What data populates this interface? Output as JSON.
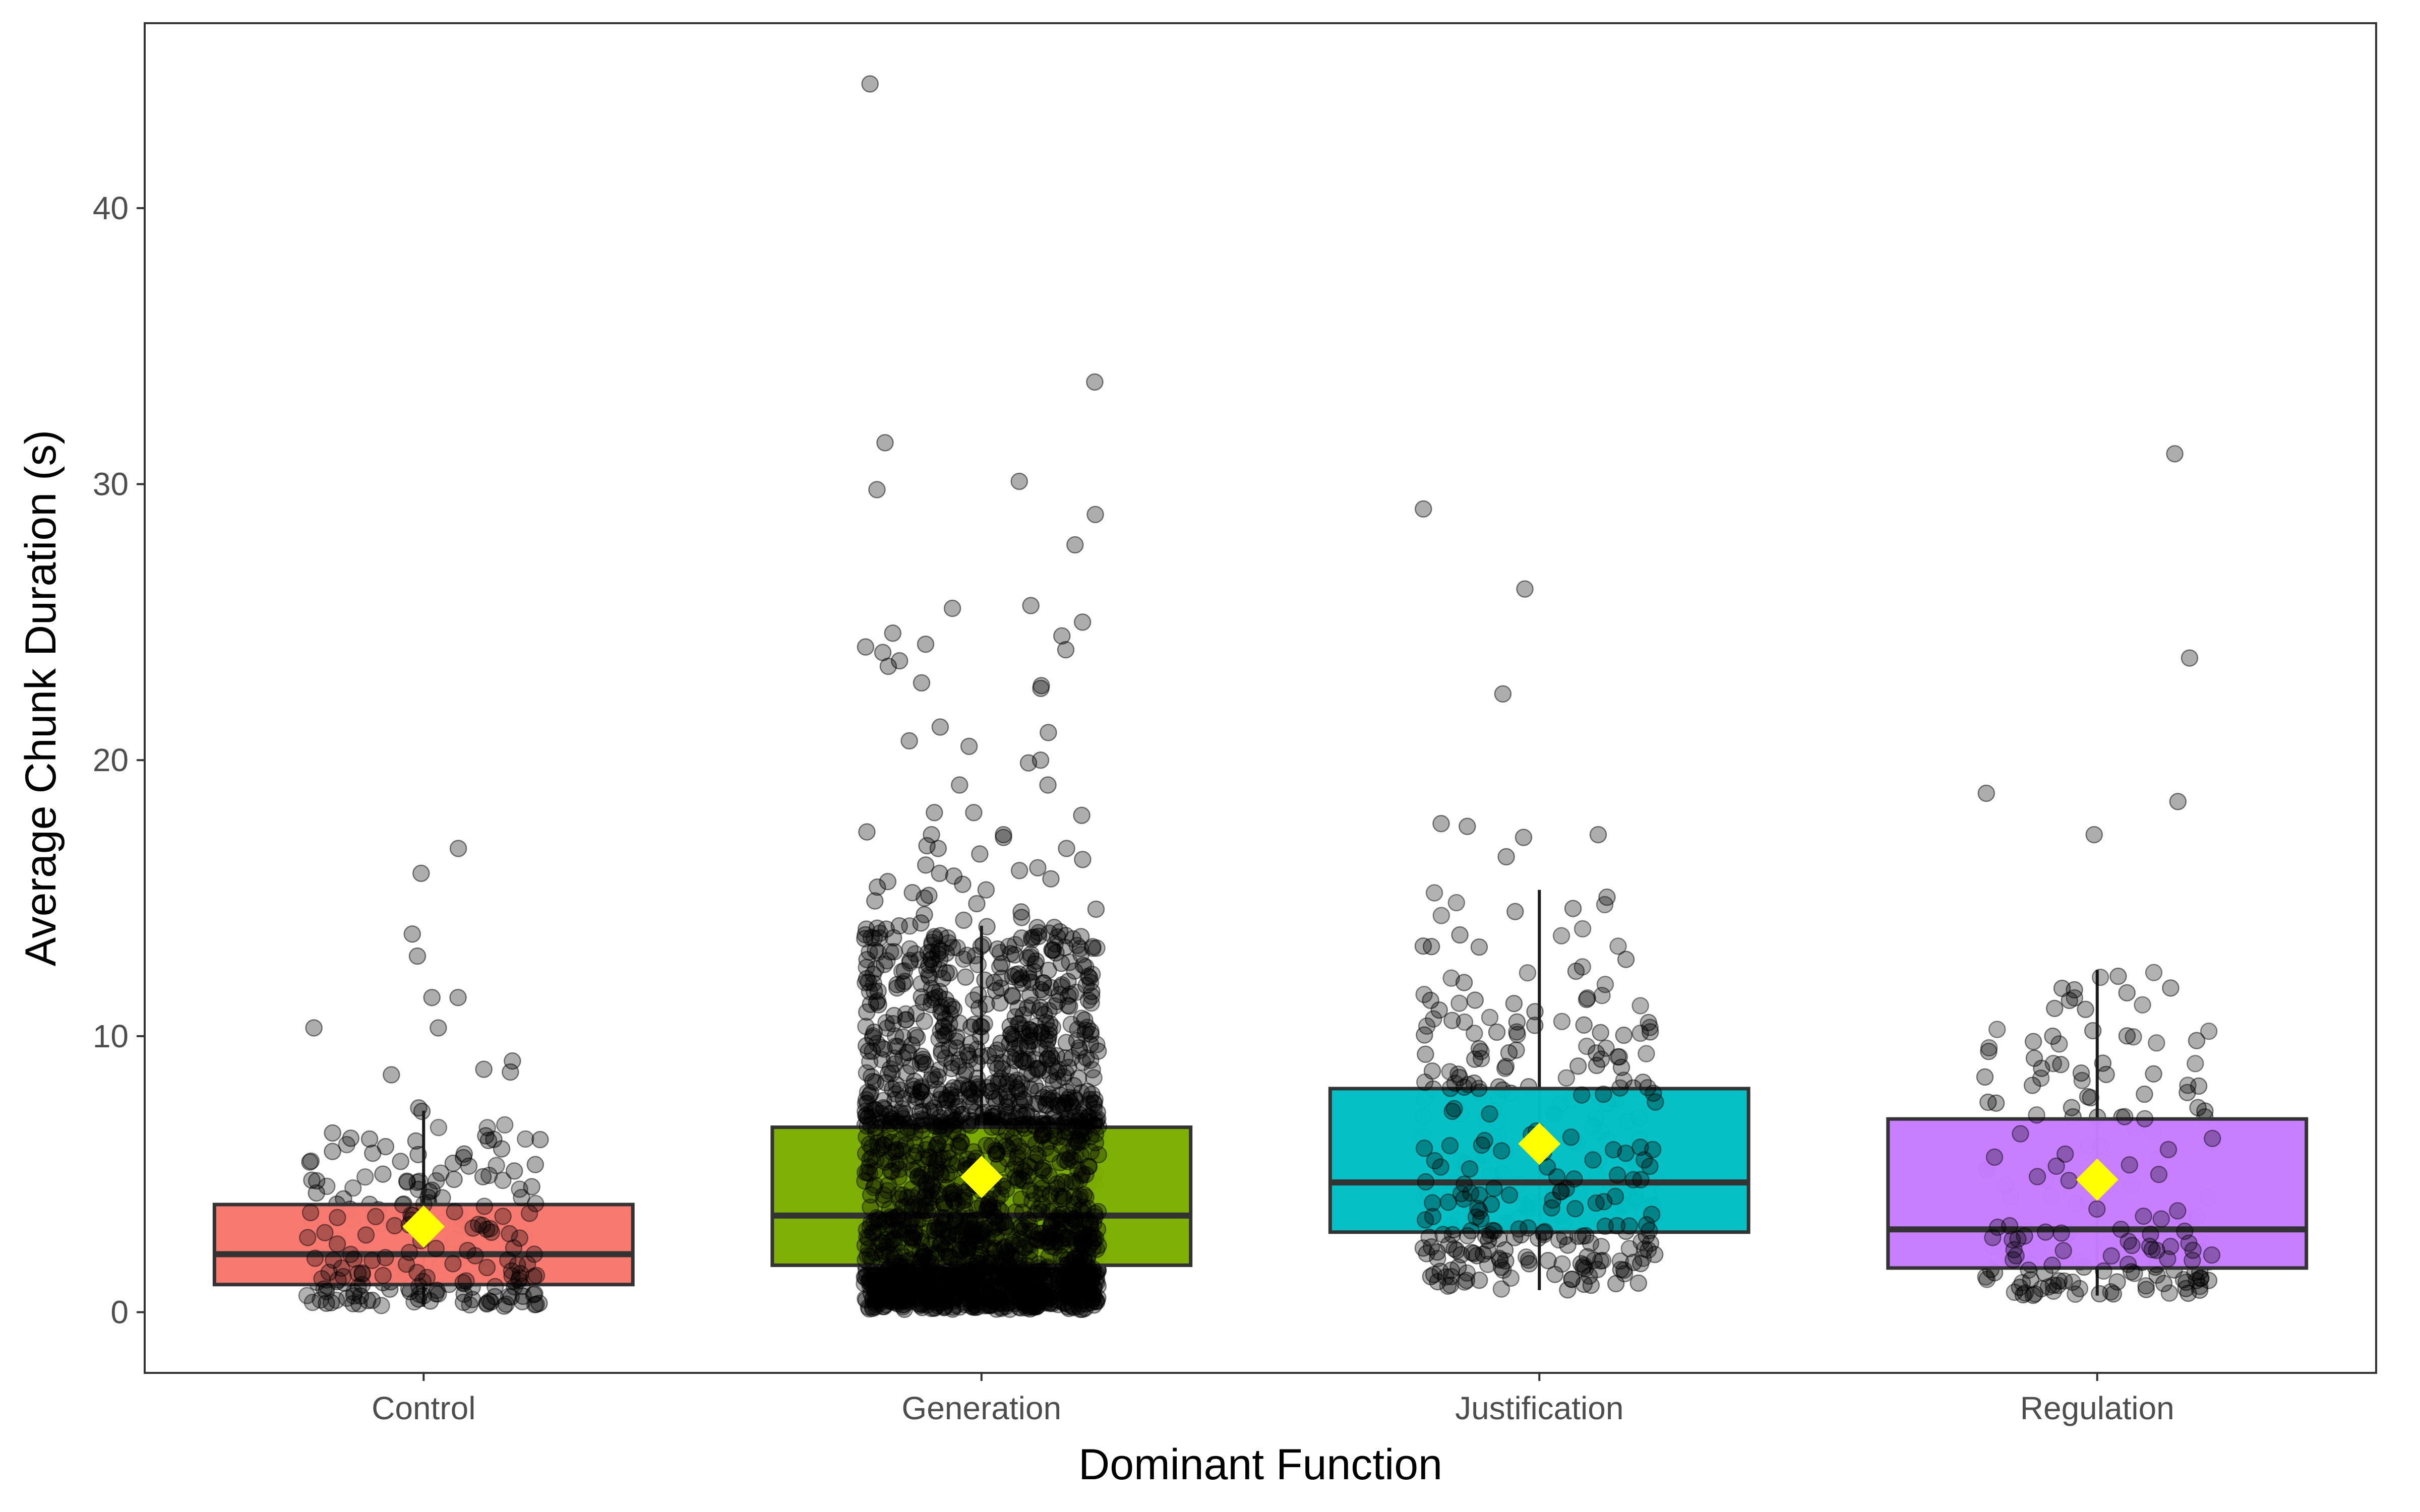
{
  "chart_data": {
    "type": "boxplot",
    "title": "",
    "xlabel": "Dominant Function",
    "ylabel": "Average Chunk Duration (s)",
    "categories": [
      "Control",
      "Generation",
      "Justification",
      "Regulation"
    ],
    "ylim": [
      -2.2,
      46.7
    ],
    "yticks": [
      0,
      10,
      20,
      30,
      40
    ],
    "ytick_labels": [
      "0",
      "10",
      "20",
      "30",
      "40"
    ],
    "grid": false,
    "legend": "none",
    "colors": {
      "Control": "#F8766D",
      "Generation": "#7CAE00",
      "Justification": "#00BFC4",
      "Regulation": "#C77CFF",
      "box_outline": "#333333",
      "whisker": "#1a1a1a",
      "points": "#000000",
      "mean_marker": "#FFFF00"
    },
    "boxes": [
      {
        "category": "Control",
        "whisker_low": 0.2,
        "q1": 1.0,
        "median": 2.1,
        "q3": 3.9,
        "whisker_high": 7.3,
        "mean": 3.1,
        "n_points": 150,
        "outliers": [
          16.8,
          15.9,
          13.7,
          12.9,
          11.4,
          11.4,
          10.3,
          10.3,
          9.1,
          8.8,
          8.7,
          8.6,
          7.4
        ]
      },
      {
        "category": "Generation",
        "whisker_low": 0.1,
        "q1": 1.7,
        "median": 3.5,
        "q3": 6.7,
        "whisker_high": 14.0,
        "mean": 4.9,
        "n_points": 1600,
        "outliers": [
          44.5,
          33.7,
          31.5,
          30.1,
          29.8,
          28.9,
          27.8,
          25.6,
          25.5,
          25.0,
          24.6,
          24.5,
          24.2,
          24.1,
          24.0,
          23.9,
          23.6,
          23.4,
          22.8,
          22.7,
          22.6,
          21.2,
          21.0,
          20.7,
          20.5,
          20.0,
          19.9,
          19.1,
          19.1,
          18.1,
          18.1,
          18.0,
          17.4,
          17.3,
          17.3,
          17.2,
          16.9,
          16.8,
          16.8,
          16.6,
          16.4,
          16.2,
          16.1,
          16.0,
          15.9,
          15.8,
          15.7,
          15.6,
          15.5,
          15.4,
          15.3,
          15.2,
          15.1,
          15.0,
          14.9,
          14.8,
          14.6,
          14.5,
          14.4,
          14.3,
          14.2,
          14.1
        ]
      },
      {
        "category": "Justification",
        "whisker_low": 0.8,
        "q1": 2.9,
        "median": 4.7,
        "q3": 8.1,
        "whisker_high": 15.3,
        "mean": 6.1,
        "n_points": 200,
        "outliers": [
          29.1,
          26.2,
          22.4,
          17.7,
          17.6,
          17.3,
          17.2,
          16.5
        ]
      },
      {
        "category": "Regulation",
        "whisker_low": 0.6,
        "q1": 1.6,
        "median": 3.0,
        "q3": 7.0,
        "whisker_high": 12.4,
        "mean": 4.8,
        "n_points": 110,
        "outliers": [
          31.1,
          23.7,
          18.8,
          18.5,
          17.3
        ]
      }
    ]
  }
}
